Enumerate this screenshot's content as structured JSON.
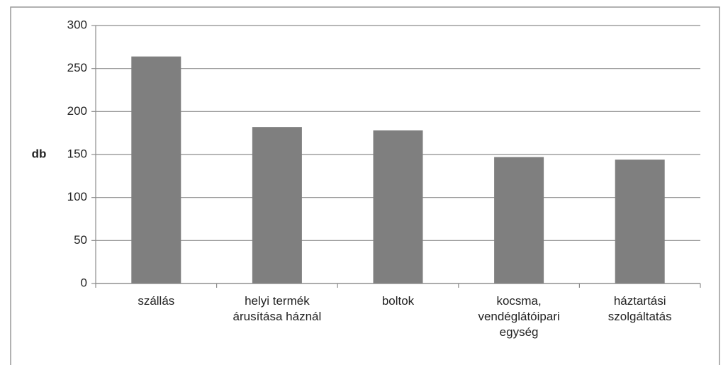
{
  "chart_data": {
    "type": "bar",
    "y_label": "db",
    "categories": [
      "szállás",
      "helyi termék\nárusítása háznál",
      "boltok",
      "kocsma,\nvendéglátóipari\negység",
      "háztartási\nszolgáltatás"
    ],
    "values": [
      264,
      182,
      178,
      147,
      144
    ],
    "color": "#7f7f7f",
    "ylim": [
      0,
      300
    ],
    "yticks": [
      0,
      50,
      100,
      150,
      200,
      250,
      300
    ],
    "grid": true
  }
}
